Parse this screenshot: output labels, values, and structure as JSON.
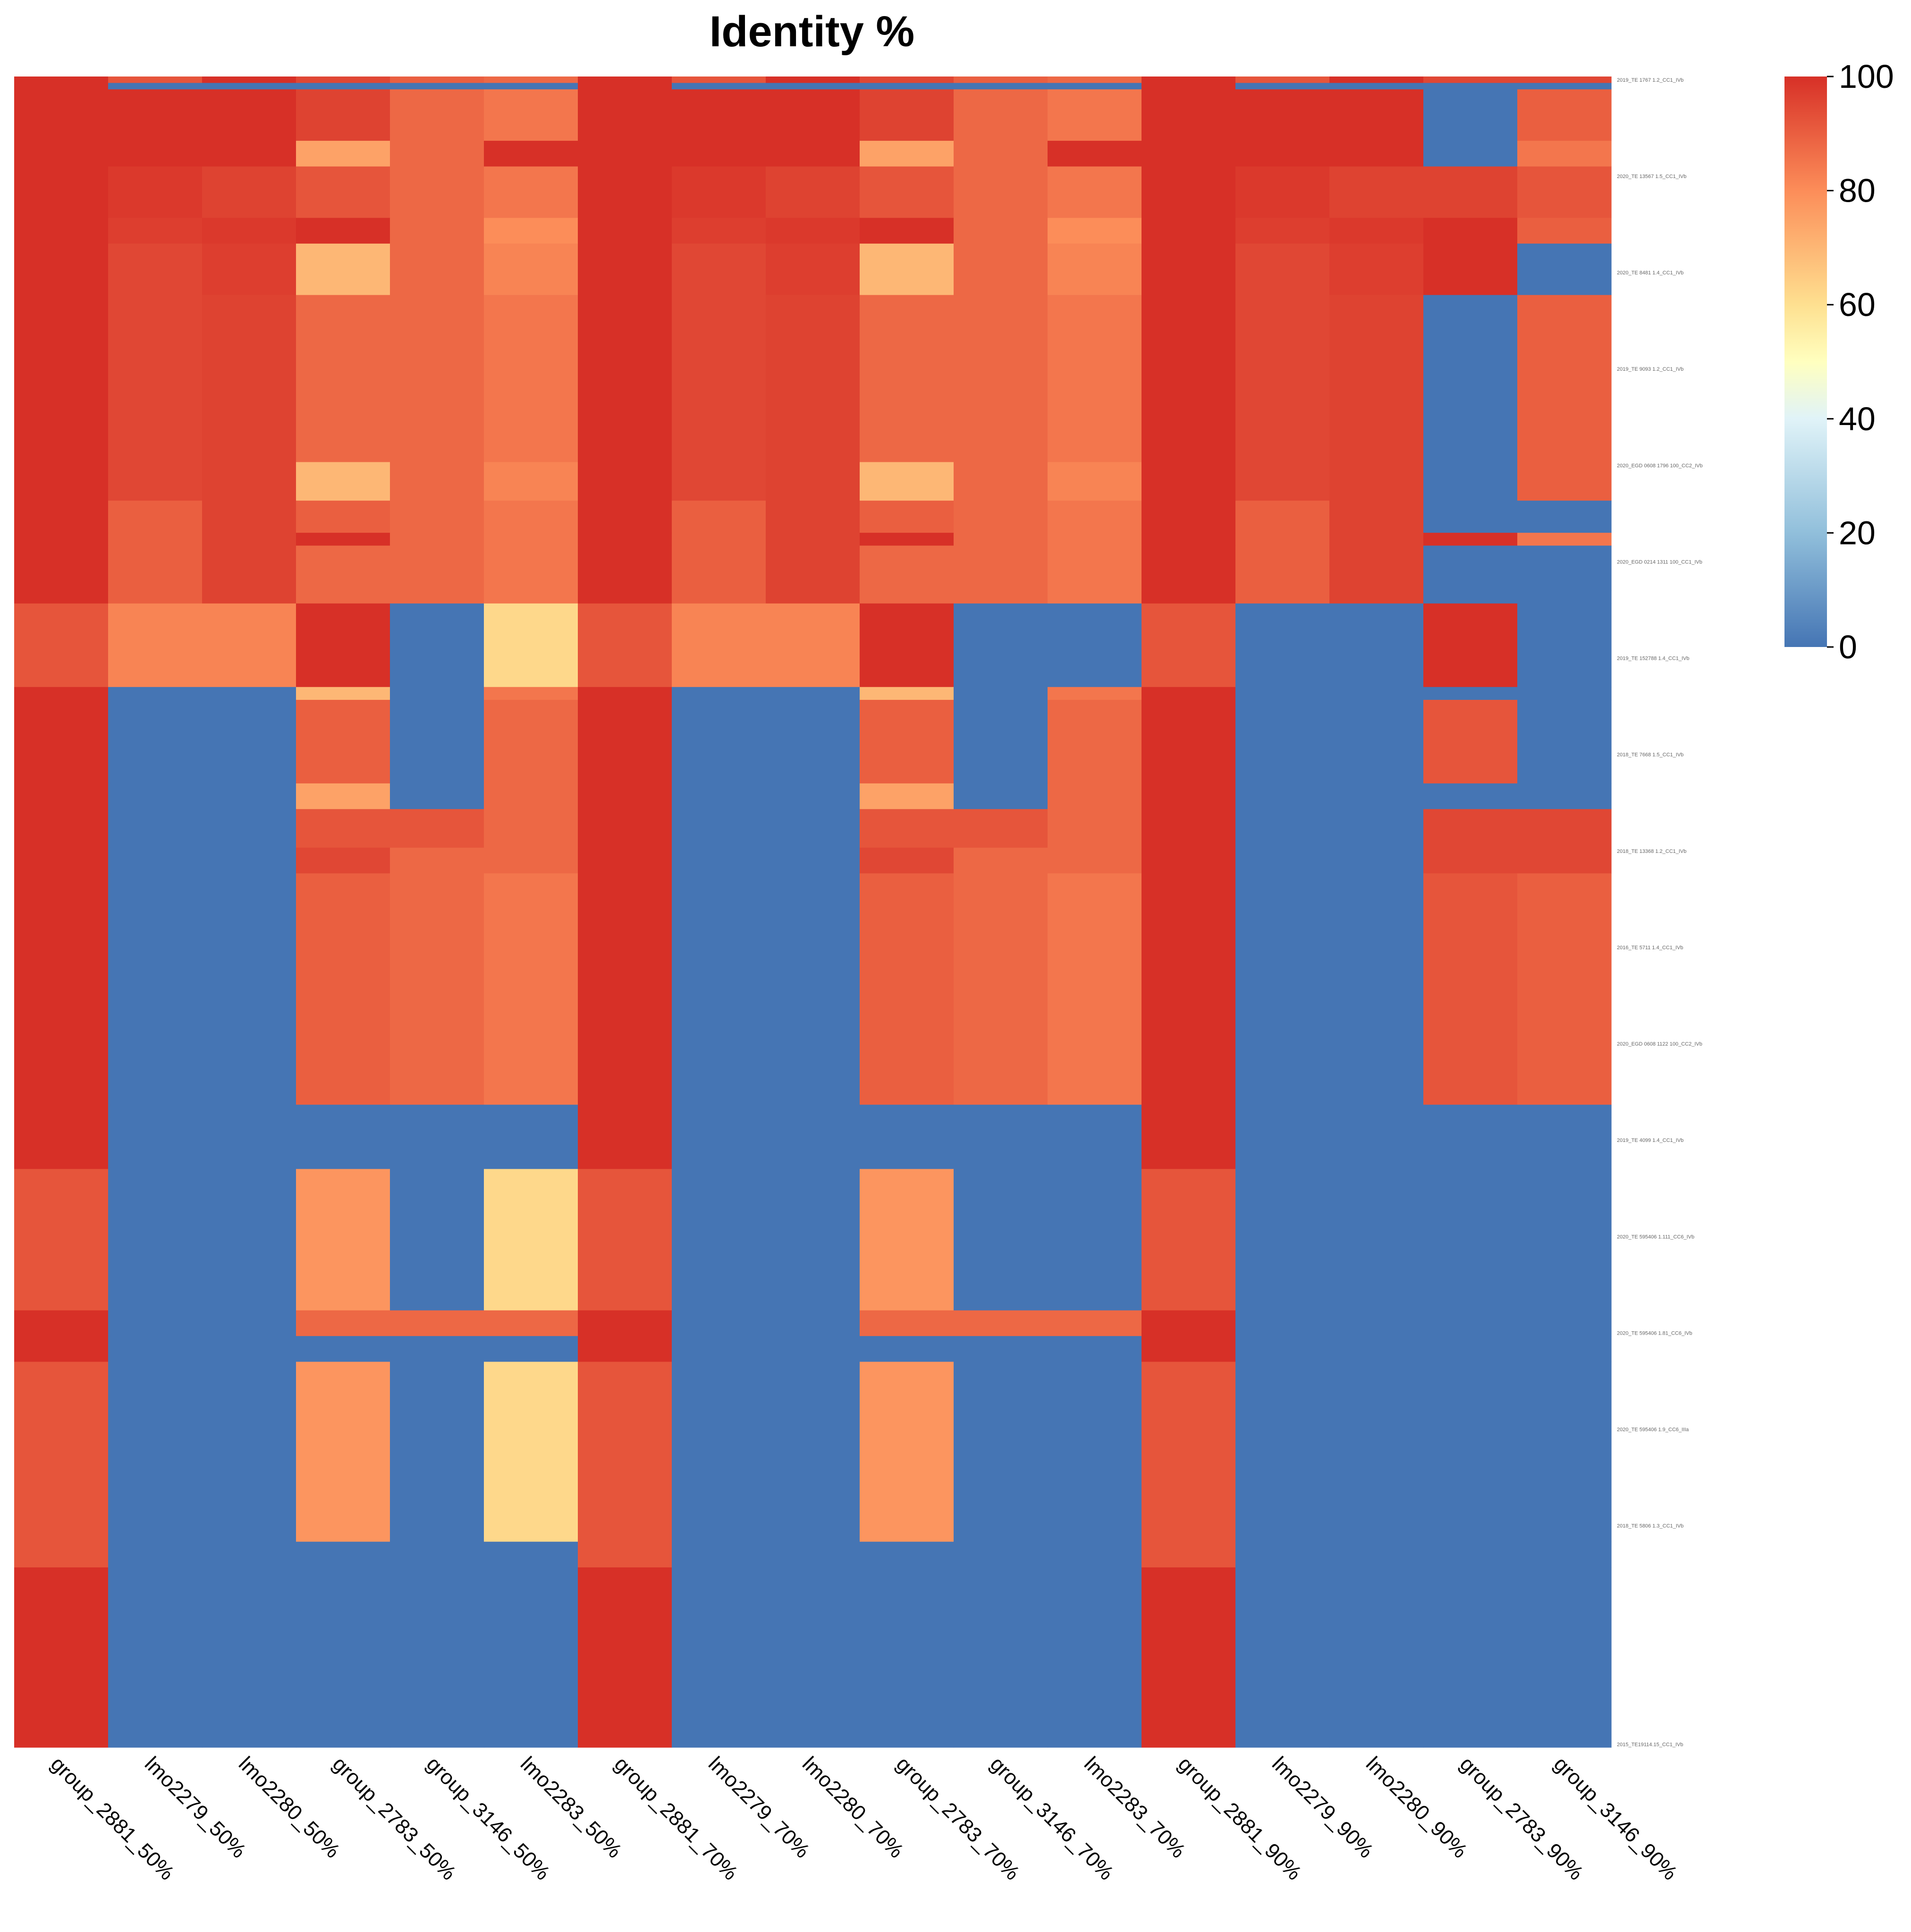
{
  "chart_data": {
    "type": "heatmap",
    "title": "Identity %",
    "columns": [
      "group_2881_50%",
      "lmo2279_50%",
      "lmo2280_50%",
      "group_2783_50%",
      "group_3146_50%",
      "lmo2283_50%",
      "group_2881_70%",
      "lmo2279_70%",
      "lmo2280_70%",
      "group_2783_70%",
      "group_3146_70%",
      "lmo2283_70%",
      "group_2881_90%",
      "lmo2279_90%",
      "lmo2280_90%",
      "group_2783_90%",
      "group_3146_90%"
    ],
    "row_count": 260,
    "row_label_samples": [
      "2019_TE 1767 1.2_CC1_IVb",
      "2020_TE 13567 1.5_CC1_IVb",
      "2020_TE 8481 1.4_CC1_IVb",
      "2019_TE 9093 1.2_CC1_IVb",
      "2020_EGD 0608 1796 100_CC2_IVb",
      "2020_EGD 0214 1311 100_CC1_IVb",
      "2019_TE 152788 1.4_CC1_IVb",
      "2018_TE 7668 1.5_CC1_IVb",
      "2018_TE 13368 1.2_CC1_IVb",
      "2016_TE 5711 1.4_CC1_IVb",
      "2020_EGD 0608 1122 100_CC2_IVb",
      "2019_TE 4099 1.4_CC1_IVb",
      "2020_TE 595406 1.111_CC6_IVb",
      "2020_TE 595406 1.81_CC6_IVb",
      "2020_TE 595406 1.9_CC6_IIIa",
      "2018_TE 5806 1.3_CC1_IVb",
      "2015_TE19114.15_CC1_IVb"
    ],
    "value_range": [
      0,
      100
    ],
    "colorscale": {
      "0": "#4575b4",
      "20": "#91bfdb",
      "40": "#e0f3f8",
      "50": "#ffffbf",
      "60": "#fee090",
      "80": "#fc8d59",
      "100": "#d73027"
    },
    "legend": {
      "ticks": [
        100,
        80,
        60,
        40,
        20,
        0
      ],
      "placement": "top-right"
    },
    "blocks": [
      {
        "rows": [
          0,
          1
        ],
        "values": [
          100,
          92,
          100,
          95,
          90,
          88,
          100,
          92,
          100,
          95,
          90,
          88,
          100,
          92,
          100,
          95,
          95
        ]
      },
      {
        "rows": [
          1,
          2
        ],
        "values": [
          100,
          0,
          0,
          0,
          0,
          0,
          100,
          0,
          0,
          0,
          0,
          0,
          100,
          0,
          0,
          0,
          0
        ]
      },
      {
        "rows": [
          2,
          10
        ],
        "values": [
          100,
          100,
          100,
          96,
          88,
          85,
          100,
          100,
          100,
          96,
          88,
          85,
          100,
          100,
          100,
          0,
          90
        ]
      },
      {
        "rows": [
          10,
          14
        ],
        "values": [
          100,
          100,
          100,
          75,
          88,
          100,
          100,
          100,
          100,
          75,
          88,
          100,
          100,
          100,
          100,
          0,
          85
        ]
      },
      {
        "rows": [
          14,
          22
        ],
        "values": [
          100,
          98,
          96,
          92,
          88,
          85,
          100,
          98,
          96,
          92,
          88,
          85,
          100,
          98,
          96,
          96,
          92
        ]
      },
      {
        "rows": [
          22,
          26
        ],
        "values": [
          100,
          97,
          98,
          100,
          88,
          80,
          100,
          97,
          98,
          100,
          88,
          80,
          100,
          97,
          98,
          100,
          90
        ]
      },
      {
        "rows": [
          26,
          34
        ],
        "values": [
          100,
          95,
          97,
          70,
          88,
          82,
          100,
          95,
          97,
          70,
          88,
          82,
          100,
          95,
          97,
          100,
          0
        ]
      },
      {
        "rows": [
          34,
          60
        ],
        "values": [
          100,
          95,
          96,
          88,
          88,
          85,
          100,
          95,
          96,
          88,
          88,
          85,
          100,
          95,
          96,
          0,
          90
        ]
      },
      {
        "rows": [
          60,
          66
        ],
        "values": [
          100,
          95,
          96,
          70,
          88,
          82,
          100,
          95,
          96,
          70,
          88,
          82,
          100,
          95,
          96,
          0,
          90
        ]
      },
      {
        "rows": [
          66,
          71
        ],
        "values": [
          100,
          90,
          96,
          90,
          88,
          85,
          100,
          90,
          96,
          90,
          88,
          85,
          100,
          90,
          96,
          0,
          0
        ]
      },
      {
        "rows": [
          71,
          73
        ],
        "values": [
          100,
          90,
          96,
          100,
          88,
          85,
          100,
          90,
          96,
          100,
          88,
          85,
          100,
          90,
          96,
          100,
          85
        ]
      },
      {
        "rows": [
          73,
          80
        ],
        "values": [
          100,
          90,
          96,
          88,
          88,
          85,
          100,
          90,
          96,
          88,
          88,
          85,
          100,
          90,
          96,
          0,
          0
        ]
      },
      {
        "rows": [
          80,
          82
        ],
        "values": [
          100,
          90,
          96,
          88,
          88,
          85,
          100,
          90,
          96,
          88,
          88,
          85,
          100,
          90,
          96,
          0,
          0
        ]
      },
      {
        "rows": [
          82,
          95
        ],
        "values": [
          92,
          82,
          82,
          100,
          0,
          62,
          92,
          82,
          82,
          100,
          0,
          0,
          92,
          0,
          0,
          100,
          0
        ]
      },
      {
        "rows": [
          95,
          97
        ],
        "values": [
          100,
          0,
          0,
          70,
          0,
          85,
          100,
          0,
          0,
          70,
          0,
          85,
          100,
          0,
          0,
          0,
          0
        ]
      },
      {
        "rows": [
          97,
          110
        ],
        "values": [
          100,
          0,
          0,
          90,
          0,
          88,
          100,
          0,
          0,
          90,
          0,
          88,
          100,
          0,
          0,
          92,
          0
        ]
      },
      {
        "rows": [
          110,
          114
        ],
        "values": [
          100,
          0,
          0,
          75,
          0,
          88,
          100,
          0,
          0,
          75,
          0,
          88,
          100,
          0,
          0,
          0,
          0
        ]
      },
      {
        "rows": [
          114,
          120
        ],
        "values": [
          100,
          0,
          0,
          92,
          92,
          88,
          100,
          0,
          0,
          92,
          92,
          88,
          100,
          0,
          0,
          95,
          95
        ]
      },
      {
        "rows": [
          120,
          124
        ],
        "values": [
          100,
          0,
          0,
          95,
          88,
          88,
          100,
          0,
          0,
          95,
          88,
          88,
          100,
          0,
          0,
          95,
          95
        ]
      },
      {
        "rows": [
          124,
          160
        ],
        "values": [
          100,
          0,
          0,
          90,
          88,
          85,
          100,
          0,
          0,
          90,
          88,
          85,
          100,
          0,
          0,
          92,
          90
        ]
      },
      {
        "rows": [
          160,
          162
        ],
        "values": [
          100,
          0,
          0,
          0,
          0,
          0,
          100,
          0,
          0,
          0,
          0,
          0,
          100,
          0,
          0,
          0,
          0
        ]
      },
      {
        "rows": [
          162,
          170
        ],
        "values": [
          100,
          0,
          0,
          0,
          0,
          0,
          100,
          0,
          0,
          0,
          0,
          0,
          100,
          0,
          0,
          0,
          0
        ]
      },
      {
        "rows": [
          170,
          192
        ],
        "values": [
          92,
          0,
          0,
          78,
          0,
          62,
          92,
          0,
          0,
          78,
          0,
          0,
          92,
          0,
          0,
          0,
          0
        ]
      },
      {
        "rows": [
          192,
          196
        ],
        "values": [
          100,
          0,
          0,
          88,
          88,
          88,
          100,
          0,
          0,
          88,
          88,
          88,
          100,
          0,
          0,
          0,
          0
        ]
      },
      {
        "rows": [
          196,
          200
        ],
        "values": [
          100,
          0,
          0,
          0,
          0,
          0,
          100,
          0,
          0,
          0,
          0,
          0,
          100,
          0,
          0,
          0,
          0
        ]
      },
      {
        "rows": [
          200,
          228
        ],
        "values": [
          92,
          0,
          0,
          78,
          0,
          62,
          92,
          0,
          0,
          78,
          0,
          0,
          92,
          0,
          0,
          0,
          0
        ]
      },
      {
        "rows": [
          228,
          232
        ],
        "values": [
          92,
          0,
          0,
          0,
          0,
          0,
          92,
          0,
          0,
          0,
          0,
          0,
          92,
          0,
          0,
          0,
          0
        ]
      },
      {
        "rows": [
          232,
          260
        ],
        "values": [
          100,
          0,
          0,
          0,
          0,
          0,
          100,
          0,
          0,
          0,
          0,
          0,
          100,
          0,
          0,
          0,
          0
        ]
      }
    ]
  }
}
